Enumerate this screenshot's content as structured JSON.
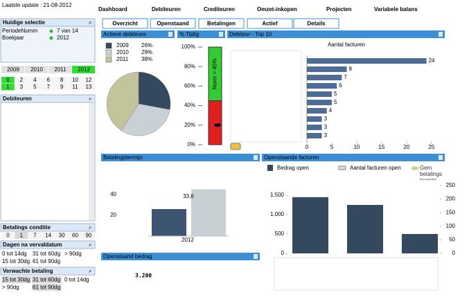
{
  "header": {
    "last_update": "Laatste update : 21-08-2012"
  },
  "nav": [
    "Dashboard",
    "Debiteuren",
    "Crediteuren",
    "Omzet-inkopen",
    "Projecten",
    "Variabele balans"
  ],
  "subnav": [
    "Overzicht",
    "Openstaand",
    "Betalingen",
    "Actief",
    "Details"
  ],
  "selection": {
    "title": "Huidige selectie",
    "rows": [
      [
        "PeriodeNumm",
        "7 van 14"
      ],
      [
        "Boekjaar",
        "2012"
      ]
    ]
  },
  "years": [
    "2009",
    "2010",
    "2011",
    "2012"
  ],
  "months": [
    [
      0,
      2,
      4,
      6,
      8,
      10,
      12
    ],
    [
      1,
      3,
      5,
      7,
      9,
      11,
      13
    ]
  ],
  "debiteuren": {
    "title": "Debiteuren"
  },
  "betalings_conditie": {
    "title": "Betalings conditie",
    "values": [
      0,
      1,
      7,
      14,
      30,
      60,
      90
    ]
  },
  "dagen": {
    "title": "Dagen na vervaldatum",
    "items": [
      "0 tot 14dg",
      "31 tot 60dg",
      "> 90dg",
      "15 tot 30dg",
      "61 tot 90dg"
    ]
  },
  "verwacht": {
    "title": "Verwachte betaling",
    "items": [
      "15 tot 30dg",
      "31 tot 60dg",
      "0 tot 14dg",
      "> 90dg",
      "61 tot 90dg"
    ]
  },
  "pie": {
    "type": "pie",
    "title": "Actieve debiteure",
    "categories": [
      "2009",
      "2010",
      "2011"
    ],
    "values": [
      26,
      29,
      38
    ],
    "value_labels": [
      "26%",
      "29%",
      "38%"
    ],
    "colors": [
      "#34495e",
      "#c9d1d6",
      "#c4c49a"
    ]
  },
  "gauge": {
    "type": "gauge",
    "title": "% Tijdig",
    "ylim": [
      0,
      100
    ],
    "yticks": [
      {
        "value": 0,
        "label": "0%"
      },
      {
        "value": 20,
        "label": "20%"
      },
      {
        "value": 40,
        "label": "40%"
      },
      {
        "value": 60,
        "label": "60%"
      },
      {
        "value": 80,
        "label": "80%"
      },
      {
        "value": 100,
        "label": "100%"
      }
    ],
    "norm": 45,
    "norm_label": "Norm = 45%",
    "value": 20
  },
  "top10": {
    "type": "bar",
    "title": "Debiteur - Top 10",
    "subtitle": "Aantal facturen",
    "values": [
      24,
      8,
      7,
      6,
      5,
      5,
      4,
      3,
      3,
      3
    ],
    "xlim": [
      0,
      26
    ],
    "xticks": [
      0,
      5,
      10,
      15,
      20,
      25
    ],
    "color": "#4d6d96"
  },
  "termijn": {
    "type": "bar",
    "title": "Betalingstermijn",
    "categories": [
      "2012"
    ],
    "series": [
      {
        "values": [
          26
        ],
        "color": "#3d5570"
      },
      {
        "values": [
          45
        ],
        "color": "#c8d0d4"
      }
    ],
    "annotation": "33,6",
    "ylim": [
      0,
      50
    ],
    "yticks": [
      20,
      40
    ]
  },
  "openstaand": {
    "type": "bar",
    "title": "Openstaande facturen",
    "legend": [
      "Bedrag open",
      "Aantal facturen open",
      "Gem betalings termijn"
    ],
    "values": [
      1450,
      1250,
      500
    ],
    "color": "#34495e",
    "ylim": [
      0,
      1750
    ],
    "yticks": [
      0,
      500,
      {
        "value": 1000,
        "label": "1.000"
      },
      {
        "value": 1500,
        "label": "1.500"
      }
    ],
    "y2lim": [
      0,
      250
    ],
    "y2ticks": [
      0,
      50,
      100,
      150,
      200,
      250
    ]
  },
  "bedrag": {
    "title": "Openstaand bedrag",
    "value": "3.200"
  }
}
